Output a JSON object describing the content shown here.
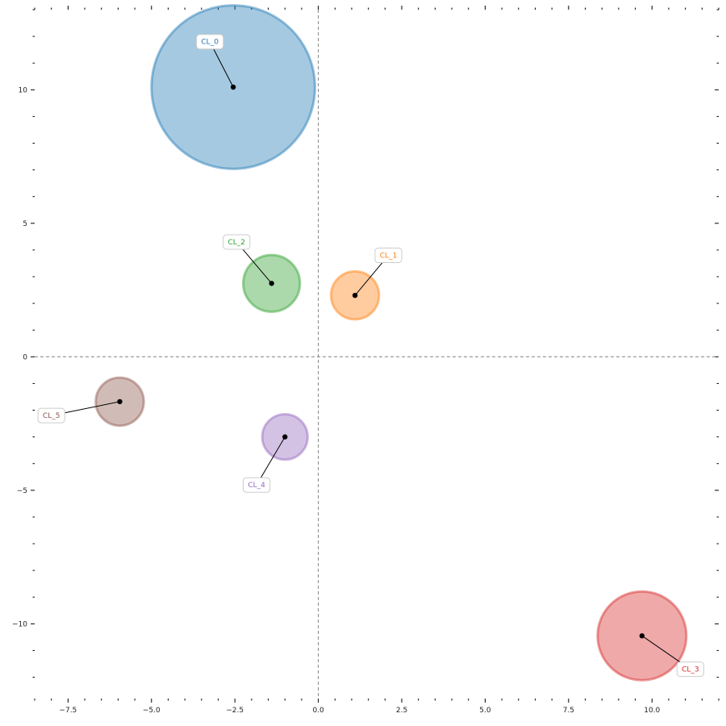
{
  "chart_data": {
    "type": "scatter",
    "title": "",
    "xlabel": "",
    "ylabel": "",
    "xlim": [
      -8.5,
      12.0
    ],
    "ylim": [
      -12.8,
      13.0
    ],
    "grid": false,
    "reference_lines": {
      "x": 0,
      "y": 0,
      "style": "dashed",
      "color": "#808080"
    },
    "x_ticks": [
      -7.5,
      -5.0,
      -2.5,
      0.0,
      2.5,
      5.0,
      7.5,
      10.0
    ],
    "x_tick_labels": [
      "−7.5",
      "−5.0",
      "−2.5",
      "0.0",
      "2.5",
      "5.0",
      "7.5",
      "10.0"
    ],
    "y_ticks": [
      -10,
      -5,
      0,
      5,
      10
    ],
    "y_tick_labels": [
      "−10",
      "−5",
      "0",
      "5",
      "10"
    ],
    "x_minor_step": 0.5,
    "y_minor_step": 1,
    "clusters": [
      {
        "label": "CL_0",
        "x": -2.55,
        "y": 10.1,
        "size": 2.45,
        "color": "#1f77b4",
        "label_x": -3.25,
        "label_y": 11.8
      },
      {
        "label": "CL_1",
        "x": 1.1,
        "y": 2.3,
        "size": 0.72,
        "color": "#ff7f0e",
        "label_x": 2.1,
        "label_y": 3.8
      },
      {
        "label": "CL_2",
        "x": -1.4,
        "y": 2.75,
        "size": 0.85,
        "color": "#2ca02c",
        "label_x": -2.45,
        "label_y": 4.3
      },
      {
        "label": "CL_3",
        "x": 9.7,
        "y": -10.45,
        "size": 1.33,
        "color": "#d62728",
        "label_x": 11.15,
        "label_y": -11.7
      },
      {
        "label": "CL_4",
        "x": -1.0,
        "y": -3.0,
        "size": 0.68,
        "color": "#9467bd",
        "label_x": -1.85,
        "label_y": -4.8
      },
      {
        "label": "CL_5",
        "x": -5.95,
        "y": -1.68,
        "size": 0.72,
        "color": "#8c564b",
        "label_x": -8.0,
        "label_y": -2.2
      }
    ]
  }
}
